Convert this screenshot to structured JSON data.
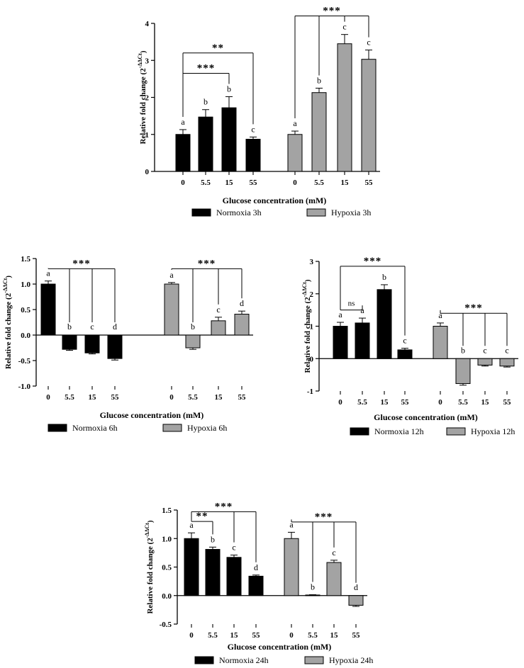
{
  "colors": {
    "normoxia": "#000000",
    "hypoxia": "#a3a3a3",
    "axis": "#000000"
  },
  "chart_data": [
    {
      "type": "bar",
      "id": "3h",
      "xlabel": "Glucose concentration (mM)",
      "ylabel": "Relative fold change (2",
      "ylabel_sup": "-ΔΔCt",
      "ylabel_close": ")",
      "ylim": [
        0,
        4
      ],
      "yticks": [
        "0",
        "1",
        "2",
        "3",
        "4"
      ],
      "categories": [
        "0",
        "5.5",
        "15",
        "55"
      ],
      "series": [
        {
          "name": "Normoxia 3h",
          "values": [
            1.0,
            1.47,
            1.72,
            0.87
          ],
          "errors": [
            0.13,
            0.2,
            0.3,
            0.06
          ],
          "letters": [
            "a",
            "b",
            "b",
            "c"
          ]
        },
        {
          "name": "Hypoxia 3h",
          "values": [
            1.0,
            2.13,
            3.45,
            3.03
          ],
          "errors": [
            0.09,
            0.12,
            0.25,
            0.25
          ],
          "letters": [
            "a",
            "b",
            "c",
            "c"
          ]
        }
      ],
      "significance": [
        {
          "series": 0,
          "from": 0,
          "to": [
            2
          ],
          "label": "***",
          "y": 2.65
        },
        {
          "series": 0,
          "from": 0,
          "to": [
            3
          ],
          "label": "**",
          "y": 3.2
        },
        {
          "series": 1,
          "from": 0,
          "to": [
            1,
            2,
            3
          ],
          "label": "***",
          "y": 4.2
        }
      ]
    },
    {
      "type": "bar",
      "id": "6h",
      "xlabel": "Glucose concentration (mM)",
      "ylabel": "Relative fold change (2",
      "ylabel_sup": "-ΔΔCt",
      "ylabel_close": ")",
      "ylim": [
        -1.0,
        1.5
      ],
      "yticks": [
        "-1.0",
        "-0.5",
        "0.0",
        "0.5",
        "1.0",
        "1.5"
      ],
      "categories": [
        "0",
        "5.5",
        "15",
        "55"
      ],
      "series": [
        {
          "name": "Normoxia 6h",
          "values": [
            1.0,
            -0.28,
            -0.35,
            -0.46
          ],
          "errors": [
            0.06,
            0.02,
            0.02,
            0.03
          ],
          "letters": [
            "a",
            "b",
            "c",
            "d"
          ]
        },
        {
          "name": "Hypoxia 6h",
          "values": [
            1.0,
            -0.25,
            0.28,
            0.41
          ],
          "errors": [
            0.03,
            0.03,
            0.07,
            0.06
          ],
          "letters": [
            "a",
            "b",
            "c",
            "d"
          ]
        }
      ],
      "significance": [
        {
          "series": 0,
          "from": 0,
          "to": [
            1,
            2,
            3
          ],
          "label": "***",
          "y": 1.3
        },
        {
          "series": 1,
          "from": 0,
          "to": [
            1,
            2,
            3
          ],
          "label": "***",
          "y": 1.3
        }
      ]
    },
    {
      "type": "bar",
      "id": "12h",
      "xlabel": "Glucose concentration (mM)",
      "ylabel": "Relative fold change (2",
      "ylabel_sup": "-ΔΔCt",
      "ylabel_close": ")",
      "ylim": [
        -1,
        3
      ],
      "yticks": [
        "-1",
        "0",
        "1",
        "2",
        "3"
      ],
      "categories": [
        "0",
        "5.5",
        "15",
        "55"
      ],
      "series": [
        {
          "name": "Normoxia 12h",
          "values": [
            1.0,
            1.1,
            2.13,
            0.27
          ],
          "errors": [
            0.12,
            0.15,
            0.15,
            0.05
          ],
          "letters": [
            "a",
            "a",
            "b",
            "c"
          ]
        },
        {
          "name": "Hypoxia 12h",
          "values": [
            1.0,
            -0.77,
            -0.2,
            -0.23
          ],
          "errors": [
            0.1,
            0.05,
            0.03,
            0.03
          ],
          "letters": [
            "a",
            "b",
            "c",
            "c"
          ]
        }
      ],
      "significance": [
        {
          "series": 0,
          "from": 0,
          "to": [
            1
          ],
          "label": "ns",
          "y": 1.5
        },
        {
          "series": 0,
          "from": 0,
          "to": [
            3
          ],
          "label": "***",
          "y": 2.85
        },
        {
          "series": 1,
          "from": 0,
          "to": [
            1,
            2,
            3
          ],
          "label": "***",
          "y": 1.4
        }
      ]
    },
    {
      "type": "bar",
      "id": "24h",
      "xlabel": "Glucose concentration (mM)",
      "ylabel": "Relative fold change (2",
      "ylabel_sup": "-ΔΔCt",
      "ylabel_close": ")",
      "ylim": [
        -0.5,
        1.5
      ],
      "yticks": [
        "-0.5",
        "0.0",
        "0.5",
        "1.0",
        "1.5"
      ],
      "categories": [
        "0",
        "5.5",
        "15",
        "55"
      ],
      "series": [
        {
          "name": "Normoxia 24h",
          "values": [
            1.0,
            0.81,
            0.67,
            0.34
          ],
          "errors": [
            0.1,
            0.04,
            0.04,
            0.02
          ],
          "letters": [
            "a",
            "b",
            "c",
            "d"
          ]
        },
        {
          "name": "Hypoxia 24h",
          "values": [
            1.0,
            0.01,
            0.58,
            -0.17
          ],
          "errors": [
            0.11,
            0.005,
            0.04,
            0.02
          ],
          "letters": [
            "a",
            "b",
            "c",
            "d"
          ]
        }
      ],
      "significance": [
        {
          "series": 0,
          "from": 0,
          "to": [
            1
          ],
          "label": "**",
          "y": 1.3
        },
        {
          "series": 0,
          "from": 0,
          "to": [
            2,
            3
          ],
          "label": "***",
          "y": 1.47
        },
        {
          "series": 1,
          "from": 0,
          "to": [
            1,
            2,
            3
          ],
          "label": "***",
          "y": 1.29
        }
      ]
    }
  ]
}
